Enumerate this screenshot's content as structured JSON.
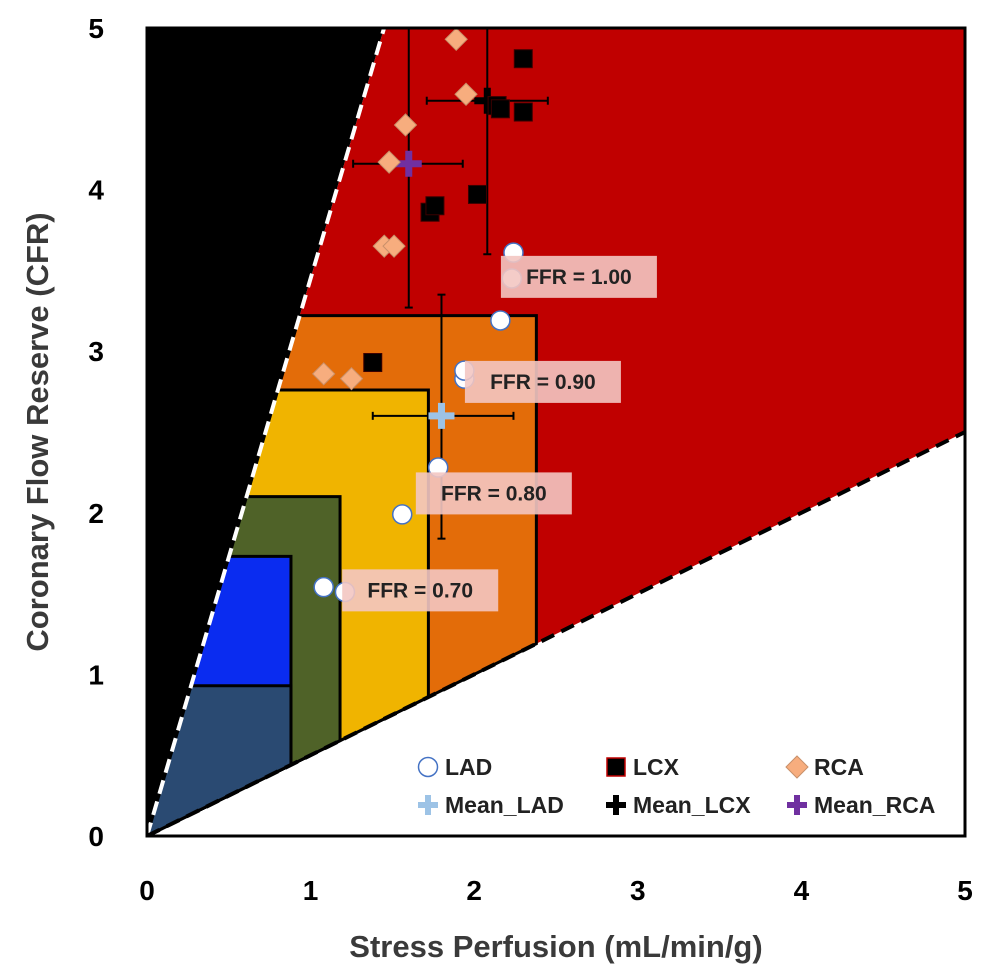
{
  "chart_data": {
    "type": "scatter",
    "xlabel": "Stress Perfusion (mL/min/g)",
    "ylabel": "Coronary  Flow Reserve  (CFR)",
    "xlim": [
      0,
      5
    ],
    "ylim": [
      0,
      5
    ],
    "x_ticks": [
      "0",
      "1",
      "2",
      "3",
      "4",
      "5"
    ],
    "y_ticks": [
      "0",
      "1",
      "2",
      "3",
      "4",
      "5"
    ],
    "grid": false,
    "legend_position": "bottom-right",
    "regions": {
      "black_boundary_slope": 3.45,
      "white_boundary_slope": 0.5,
      "colors": {
        "black": "#000000",
        "red": "#c00000",
        "orange": "#e36c09",
        "yellow": "#f0b400",
        "olive": "#4f6228",
        "blue": "#0a2cf0",
        "navy": "#2a4a72",
        "white": "#ffffff"
      },
      "ffr_zones": [
        {
          "name": "ffr-0.90-zone",
          "color": "#e36c09",
          "x_max": 2.38,
          "y_max": 3.22
        },
        {
          "name": "ffr-0.80-zone",
          "color": "#f0b400",
          "x_max": 1.72,
          "y_max": 2.76
        },
        {
          "name": "ffr-0.70-zone",
          "color": "#4f6228",
          "x_max": 1.18,
          "y_max": 2.1
        },
        {
          "name": "low-cfr-zone",
          "color": "#0a2cf0",
          "x_max": 0.88,
          "y_max": 1.73
        },
        {
          "name": "lowest-zone",
          "color": "#2a4a72",
          "x_max": 0.88,
          "y_max": 0.93
        }
      ]
    },
    "ffr_labels": [
      {
        "text": "FFR = 1.00",
        "x": 2.64,
        "y": 3.46
      },
      {
        "text": "FFR = 0.90",
        "x": 2.42,
        "y": 2.81
      },
      {
        "text": "FFR = 0.80",
        "x": 2.12,
        "y": 2.12
      },
      {
        "text": "FFR = 0.70",
        "x": 1.67,
        "y": 1.52
      }
    ],
    "series": [
      {
        "name": "LAD",
        "marker": "circle",
        "color": "#ffffff",
        "edge": "#4472c4",
        "points": [
          [
            1.08,
            1.54
          ],
          [
            1.21,
            1.51
          ],
          [
            1.56,
            1.99
          ],
          [
            1.78,
            2.28
          ],
          [
            1.94,
            2.83
          ],
          [
            1.94,
            2.88
          ],
          [
            2.16,
            3.19
          ],
          [
            2.23,
            3.45
          ],
          [
            2.24,
            3.61
          ]
        ]
      },
      {
        "name": "LCX",
        "marker": "square",
        "color": "#000000",
        "points": [
          [
            1.38,
            2.93
          ],
          [
            1.73,
            3.86
          ],
          [
            1.76,
            3.9
          ],
          [
            2.02,
            3.97
          ],
          [
            2.14,
            4.52
          ],
          [
            2.16,
            4.5
          ],
          [
            2.3,
            4.48
          ],
          [
            2.3,
            4.81
          ]
        ]
      },
      {
        "name": "RCA",
        "marker": "diamond",
        "color": "#f7ad7e",
        "points": [
          [
            1.08,
            2.86
          ],
          [
            1.25,
            2.83
          ],
          [
            1.45,
            3.65
          ],
          [
            1.51,
            3.65
          ],
          [
            1.48,
            4.17
          ],
          [
            1.58,
            4.4
          ],
          [
            1.89,
            4.93
          ],
          [
            1.95,
            4.59
          ]
        ]
      }
    ],
    "means": [
      {
        "name": "Mean_LAD",
        "color": "#9dc3e6",
        "x": 1.8,
        "y": 2.6,
        "x_err": [
          1.38,
          2.24
        ],
        "y_err": [
          1.84,
          3.35
        ]
      },
      {
        "name": "Mean_LCX",
        "color": "#000000",
        "x": 2.08,
        "y": 4.55,
        "x_err": [
          1.71,
          2.45
        ],
        "y_err": [
          3.6,
          5.0
        ]
      },
      {
        "name": "Mean_RCA",
        "color": "#7030a0",
        "x": 1.6,
        "y": 4.16,
        "x_err": [
          1.26,
          1.93
        ],
        "y_err": [
          3.27,
          5.0
        ]
      }
    ],
    "legend": [
      "LAD",
      "LCX",
      "RCA",
      "Mean_LAD",
      "Mean_LCX",
      "Mean_RCA"
    ]
  }
}
